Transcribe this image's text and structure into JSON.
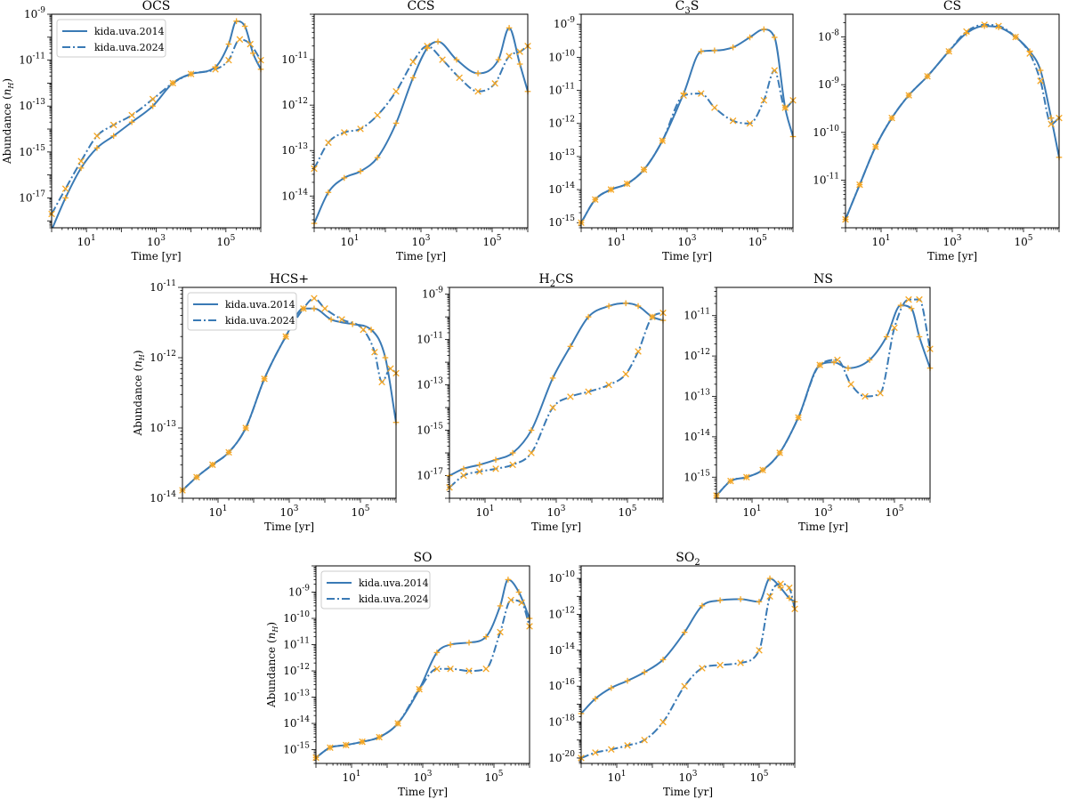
{
  "figure": {
    "x_axis_label": "Time [yr]",
    "y_axis_label": "Abundance (n_H)",
    "legend_entries": [
      "kida.uva.2014",
      "kida.uva.2024"
    ],
    "colors": {
      "line": "#3a7ab5",
      "marker": "#f5a623"
    }
  },
  "chart_data": [
    {
      "type": "line",
      "title": "OCS",
      "title_sub": "",
      "title_after": "",
      "xlabel": "Time [yr]",
      "ylabel": "Abundance (n_H)",
      "legend": "top-left",
      "xlim": [
        1,
        1000000
      ],
      "ylim": [
        5e-19,
        1e-09
      ],
      "xticks": [
        1,
        3,
        5
      ],
      "yticks": [
        -17,
        -15,
        -13,
        -11,
        -9
      ],
      "series": [
        {
          "name": "kida.uva.2014",
          "style": "solid",
          "x": [
            1,
            2.5,
            7,
            20,
            60,
            200,
            800,
            3000,
            10000,
            50000,
            120000,
            200000,
            350000,
            600000,
            1000000
          ],
          "y": [
            4e-19,
            1e-17,
            2e-16,
            1.5e-15,
            5e-15,
            2e-14,
            1e-13,
            1e-12,
            2.5e-12,
            5e-12,
            5e-11,
            5e-10,
            3e-10,
            2e-11,
            4e-12
          ]
        },
        {
          "name": "kida.uva.2024",
          "style": "dashdot",
          "x": [
            1,
            2.5,
            7,
            20,
            60,
            200,
            800,
            3000,
            10000,
            50000,
            120000,
            250000,
            500000,
            1000000
          ],
          "y": [
            2e-18,
            2.5e-17,
            4e-16,
            5e-15,
            1.5e-14,
            4e-14,
            2e-13,
            1e-12,
            2.5e-12,
            4e-12,
            1e-11,
            8e-11,
            5e-11,
            1e-11
          ]
        }
      ]
    },
    {
      "type": "line",
      "title": "CCS",
      "title_sub": "",
      "title_after": "",
      "xlabel": "Time [yr]",
      "ylabel": "",
      "legend": "none",
      "xlim": [
        1,
        1000000
      ],
      "ylim": [
        2e-15,
        1e-10
      ],
      "xticks": [
        1,
        3,
        5
      ],
      "yticks": [
        -14,
        -13,
        -12,
        -11
      ],
      "series": [
        {
          "name": "kida.uva.2014",
          "style": "solid",
          "x": [
            1,
            2.5,
            7,
            20,
            60,
            200,
            600,
            1500,
            3000,
            10000,
            40000,
            150000,
            300000,
            600000,
            1000000
          ],
          "y": [
            2.5e-15,
            1.2e-14,
            2.5e-14,
            3.5e-14,
            7e-14,
            4e-13,
            4e-12,
            1.8e-11,
            2.5e-11,
            1e-11,
            5e-12,
            1e-11,
            5e-11,
            8e-12,
            2e-12
          ]
        },
        {
          "name": "kida.uva.2024",
          "style": "dashdot",
          "x": [
            1,
            2.5,
            7,
            20,
            60,
            200,
            600,
            1500,
            4000,
            12000,
            40000,
            120000,
            300000,
            600000,
            1000000
          ],
          "y": [
            4e-14,
            1.5e-13,
            2.5e-13,
            3e-13,
            6e-13,
            2e-12,
            9e-12,
            2e-11,
            1e-11,
            4e-12,
            2e-12,
            3e-12,
            1.2e-11,
            1.5e-11,
            2e-11
          ]
        }
      ]
    },
    {
      "type": "line",
      "title": "C",
      "title_sub": "3",
      "title_after": "S",
      "xlabel": "Time [yr]",
      "ylabel": "",
      "legend": "none",
      "xlim": [
        1,
        1000000
      ],
      "ylim": [
        7e-16,
        2e-09
      ],
      "xticks": [
        1,
        3,
        5
      ],
      "yticks": [
        -15,
        -14,
        -13,
        -12,
        -11,
        -10,
        -9
      ],
      "series": [
        {
          "name": "kida.uva.2014",
          "style": "solid",
          "x": [
            1,
            2.5,
            7,
            20,
            60,
            200,
            800,
            2500,
            6000,
            20000,
            60000,
            150000,
            300000,
            600000,
            1000000
          ],
          "y": [
            1e-15,
            5e-15,
            1e-14,
            1.5e-14,
            4e-14,
            3e-13,
            8e-12,
            1.5e-10,
            1.6e-10,
            2e-10,
            4e-10,
            7e-10,
            4e-10,
            3e-12,
            4e-13
          ]
        },
        {
          "name": "kida.uva.2024",
          "style": "dashdot",
          "x": [
            1,
            2.5,
            7,
            20,
            60,
            200,
            800,
            2500,
            6000,
            20000,
            60000,
            150000,
            300000,
            600000,
            1000000
          ],
          "y": [
            1e-15,
            5e-15,
            1e-14,
            1.5e-14,
            4e-14,
            3e-13,
            7e-12,
            8e-12,
            3e-12,
            1.2e-12,
            1e-12,
            5e-12,
            4e-11,
            3e-12,
            5e-12
          ]
        }
      ]
    },
    {
      "type": "line",
      "title": "CS",
      "title_sub": "",
      "title_after": "",
      "xlabel": "Time [yr]",
      "ylabel": "",
      "legend": "none",
      "xlim": [
        1,
        1000000
      ],
      "ylim": [
        1e-12,
        3e-08
      ],
      "xticks": [
        1,
        3,
        5
      ],
      "yticks": [
        -11,
        -10,
        -9,
        -8
      ],
      "series": [
        {
          "name": "kida.uva.2014",
          "style": "solid",
          "x": [
            1,
            2.5,
            7,
            20,
            60,
            200,
            800,
            2500,
            8000,
            20000,
            60000,
            150000,
            300000,
            600000,
            1000000
          ],
          "y": [
            1.5e-12,
            8e-12,
            5e-11,
            2e-10,
            6e-10,
            1.5e-09,
            5e-09,
            1.2e-08,
            1.7e-08,
            1.6e-08,
            1e-08,
            5e-09,
            2e-09,
            2e-10,
            3e-11
          ]
        },
        {
          "name": "kida.uva.2024",
          "style": "dashdot",
          "x": [
            1,
            2.5,
            7,
            20,
            60,
            200,
            800,
            2500,
            8000,
            20000,
            60000,
            150000,
            300000,
            600000,
            1000000
          ],
          "y": [
            1.5e-12,
            8e-12,
            5e-11,
            2e-10,
            6e-10,
            1.5e-09,
            5e-09,
            1.3e-08,
            1.8e-08,
            1.7e-08,
            1e-08,
            4.5e-09,
            1.2e-09,
            1.5e-10,
            2e-10
          ]
        }
      ]
    },
    {
      "type": "line",
      "title": "HCS+",
      "title_sub": "",
      "title_after": "",
      "xlabel": "Time [yr]",
      "ylabel": "Abundance (n_H)",
      "legend": "top-left",
      "xlim": [
        1,
        1000000
      ],
      "ylim": [
        1e-14,
        1e-11
      ],
      "xticks": [
        1,
        3,
        5
      ],
      "yticks": [
        -14,
        -13,
        -12,
        -11
      ],
      "series": [
        {
          "name": "kida.uva.2014",
          "style": "solid",
          "x": [
            1,
            2.5,
            7,
            20,
            60,
            200,
            800,
            2500,
            5000,
            15000,
            60000,
            200000,
            500000,
            1000000
          ],
          "y": [
            1.3e-14,
            2e-14,
            3e-14,
            4.5e-14,
            1e-13,
            5e-13,
            2e-12,
            5e-12,
            5e-12,
            3.5e-12,
            3e-12,
            2.5e-12,
            1e-12,
            1.2e-13
          ]
        },
        {
          "name": "kida.uva.2024",
          "style": "dashdot",
          "x": [
            1,
            2.5,
            7,
            20,
            60,
            200,
            800,
            2500,
            5000,
            10000,
            30000,
            120000,
            250000,
            400000,
            700000,
            1000000
          ],
          "y": [
            1.3e-14,
            2e-14,
            3e-14,
            4.5e-14,
            1e-13,
            5e-13,
            2e-12,
            5e-12,
            7e-12,
            5e-12,
            3.5e-12,
            2.5e-12,
            1.2e-12,
            4.5e-13,
            7e-13,
            6e-13
          ]
        }
      ]
    },
    {
      "type": "line",
      "title": "H",
      "title_sub": "2",
      "title_after": "CS",
      "xlabel": "Time [yr]",
      "ylabel": "",
      "legend": "none",
      "xlim": [
        1,
        1000000
      ],
      "ylim": [
        1e-18,
        2e-09
      ],
      "xticks": [
        1,
        3,
        5
      ],
      "yticks": [
        -17,
        -15,
        -13,
        -11,
        -9
      ],
      "series": [
        {
          "name": "kida.uva.2014",
          "style": "solid",
          "x": [
            1,
            2.5,
            7,
            20,
            60,
            200,
            800,
            2500,
            8000,
            30000,
            90000,
            200000,
            500000,
            1000000
          ],
          "y": [
            1e-17,
            2e-17,
            3e-17,
            5e-17,
            1e-16,
            1e-15,
            2e-13,
            5e-12,
            1e-10,
            3e-10,
            4e-10,
            3e-10,
            1e-10,
            7e-11
          ]
        },
        {
          "name": "kida.uva.2024",
          "style": "dashdot",
          "x": [
            1,
            2.5,
            7,
            20,
            60,
            200,
            800,
            2500,
            8000,
            30000,
            90000,
            200000,
            500000,
            1000000
          ],
          "y": [
            3e-18,
            1e-17,
            1.5e-17,
            2e-17,
            3e-17,
            1e-16,
            1e-14,
            3e-14,
            5e-14,
            1e-13,
            3e-13,
            3e-12,
            1e-10,
            1.5e-10
          ]
        }
      ]
    },
    {
      "type": "line",
      "title": "NS",
      "title_sub": "",
      "title_after": "",
      "xlabel": "Time [yr]",
      "ylabel": "",
      "legend": "none",
      "xlim": [
        1,
        1000000
      ],
      "ylim": [
        3e-16,
        5e-11
      ],
      "xticks": [
        1,
        3,
        5
      ],
      "yticks": [
        -15,
        -14,
        -13,
        -12,
        -11
      ],
      "series": [
        {
          "name": "kida.uva.2014",
          "style": "solid",
          "x": [
            1,
            2.5,
            7,
            20,
            60,
            200,
            800,
            2000,
            5000,
            20000,
            60000,
            150000,
            300000,
            500000,
            1000000
          ],
          "y": [
            3.5e-16,
            8e-16,
            1e-15,
            1.5e-15,
            4e-15,
            3e-14,
            6e-13,
            7e-13,
            5e-13,
            8e-13,
            3e-12,
            1.8e-11,
            1.5e-11,
            3e-12,
            5e-13
          ]
        },
        {
          "name": "kida.uva.2024",
          "style": "dashdot",
          "x": [
            1,
            2.5,
            7,
            20,
            60,
            200,
            800,
            2500,
            6000,
            15000,
            40000,
            100000,
            250000,
            500000,
            1000000
          ],
          "y": [
            3.5e-16,
            8e-16,
            1e-15,
            1.5e-15,
            4e-15,
            3e-14,
            6e-13,
            8e-13,
            2e-13,
            1e-13,
            1.2e-13,
            5e-12,
            2.5e-11,
            2.5e-11,
            1.5e-12
          ]
        }
      ]
    },
    {
      "type": "line",
      "title": "SO",
      "title_sub": "",
      "title_after": "",
      "xlabel": "Time [yr]",
      "ylabel": "Abundance (n_H)",
      "legend": "top-left",
      "xlim": [
        1,
        1000000
      ],
      "ylim": [
        3e-16,
        1e-08
      ],
      "xticks": [
        1,
        3,
        5
      ],
      "yticks": [
        -15,
        -14,
        -13,
        -12,
        -11,
        -10,
        -9
      ],
      "series": [
        {
          "name": "kida.uva.2014",
          "style": "solid",
          "x": [
            1,
            2.5,
            7,
            20,
            60,
            200,
            800,
            2500,
            6000,
            20000,
            60000,
            150000,
            250000,
            500000,
            1000000
          ],
          "y": [
            5e-16,
            1.2e-15,
            1.5e-15,
            2e-15,
            3e-15,
            1e-14,
            2e-13,
            5e-12,
            1e-11,
            1.2e-11,
            2e-11,
            3e-10,
            3e-09,
            1e-09,
            1e-10
          ]
        },
        {
          "name": "kida.uva.2024",
          "style": "dashdot",
          "x": [
            1,
            2.5,
            7,
            20,
            60,
            200,
            800,
            2500,
            6000,
            20000,
            60000,
            150000,
            300000,
            600000,
            1000000
          ],
          "y": [
            5e-16,
            1.2e-15,
            1.5e-15,
            2e-15,
            3e-15,
            1e-14,
            2e-13,
            1.2e-12,
            1.2e-12,
            1e-12,
            1.2e-12,
            3e-11,
            5e-10,
            4e-10,
            5e-11
          ]
        }
      ]
    },
    {
      "type": "line",
      "title": "SO",
      "title_sub": "2",
      "title_after": "",
      "xlabel": "Time [yr]",
      "ylabel": "",
      "legend": "none",
      "xlim": [
        1,
        1000000
      ],
      "ylim": [
        5e-21,
        5e-10
      ],
      "xticks": [
        1,
        3,
        5
      ],
      "yticks": [
        -20,
        -18,
        -16,
        -14,
        -12,
        -10
      ],
      "series": [
        {
          "name": "kida.uva.2014",
          "style": "solid",
          "x": [
            1,
            2.5,
            7,
            20,
            60,
            200,
            800,
            2500,
            8000,
            30000,
            100000,
            200000,
            400000,
            700000,
            1000000
          ],
          "y": [
            3e-18,
            2e-17,
            8e-17,
            2e-16,
            6e-16,
            3e-15,
            1e-13,
            3e-12,
            6e-12,
            7e-12,
            5e-12,
            1e-10,
            3e-11,
            8e-12,
            5e-12
          ]
        },
        {
          "name": "kida.uva.2024",
          "style": "dashdot",
          "x": [
            1,
            2.5,
            7,
            20,
            60,
            200,
            800,
            2500,
            8000,
            30000,
            100000,
            200000,
            400000,
            700000,
            1000000
          ],
          "y": [
            1e-20,
            2e-20,
            3e-20,
            5e-20,
            1e-19,
            1e-18,
            1e-16,
            1e-15,
            1.5e-15,
            2e-15,
            1e-14,
            1e-11,
            5e-11,
            3e-11,
            2e-12
          ]
        }
      ]
    }
  ]
}
